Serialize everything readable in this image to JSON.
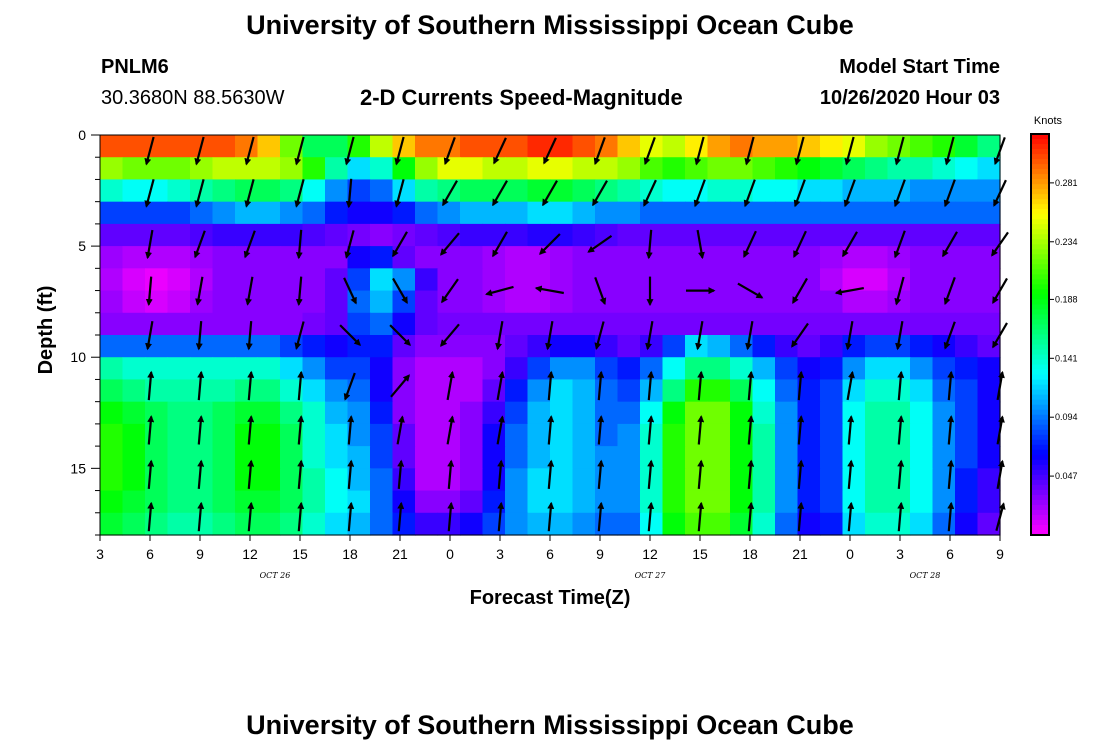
{
  "page": {
    "title": "University of Southern Mississippi Ocean Cube",
    "footer_title": "University of Southern Mississippi Ocean Cube",
    "station_id": "PNLM6",
    "station_location": "30.3680N 88.5630W",
    "subtitle": "2-D Currents Speed-Magnitude",
    "model_start_label": "Model Start Time",
    "model_start_value": "10/26/2020 Hour 03"
  },
  "chart_data": {
    "type": "heatmap",
    "title": "2-D Currents Speed-Magnitude",
    "xlabel": "Forecast Time(Z)",
    "ylabel": "Depth (ft)",
    "x_hours": [
      0,
      3,
      6,
      9,
      12,
      15,
      18,
      21,
      24,
      27,
      30,
      33,
      36,
      39,
      42,
      45,
      48,
      51,
      54
    ],
    "x_tick_labels": [
      "3",
      "6",
      "9",
      "12",
      "15",
      "18",
      "21",
      "0",
      "3",
      "6",
      "9",
      "12",
      "15",
      "18",
      "21",
      "0",
      "3",
      "6",
      "9"
    ],
    "date_labels": [
      {
        "label": "OCT 26",
        "at_hour": 10.5
      },
      {
        "label": "OCT 27",
        "at_hour": 33
      },
      {
        "label": "OCT 28",
        "at_hour": 49.5
      }
    ],
    "xlim_hours": [
      0,
      54
    ],
    "ylim_depth_ft": [
      0,
      18
    ],
    "y_ticks": [
      0,
      5,
      10,
      15
    ],
    "y_tick_labels": [
      "0",
      "5",
      "10",
      "15"
    ],
    "colorbar": {
      "title": "Knots",
      "range": [
        0,
        0.32
      ],
      "tick_values": [
        0.047,
        0.094,
        0.141,
        0.188,
        0.234,
        0.281
      ],
      "tick_labels": [
        "0.047",
        "0.094",
        "0.141",
        "0.188",
        "0.234",
        "0.281"
      ]
    },
    "depths_ft": [
      0.5,
      1.5,
      2.5,
      3.5,
      4.5,
      5.5,
      6.5,
      7.5,
      8.5,
      9.5,
      10.5,
      11.5,
      12.5,
      13.5,
      14.5,
      15.5,
      16.5,
      17.5
    ],
    "speed_knots": [
      [
        0.3,
        0.3,
        0.3,
        0.3,
        0.3,
        0.3,
        0.29,
        0.27,
        0.22,
        0.17,
        0.17,
        0.2,
        0.24,
        0.27,
        0.29,
        0.29,
        0.3,
        0.3,
        0.3,
        0.31,
        0.31,
        0.3,
        0.29,
        0.27,
        0.25,
        0.24,
        0.26,
        0.28,
        0.29,
        0.28,
        0.28,
        0.27,
        0.26,
        0.25,
        0.23,
        0.22,
        0.21,
        0.2,
        0.18,
        0.16
      ],
      [
        0.23,
        0.22,
        0.22,
        0.22,
        0.23,
        0.24,
        0.24,
        0.24,
        0.23,
        0.2,
        0.15,
        0.12,
        0.14,
        0.19,
        0.23,
        0.25,
        0.25,
        0.24,
        0.24,
        0.25,
        0.25,
        0.24,
        0.24,
        0.23,
        0.21,
        0.2,
        0.21,
        0.22,
        0.22,
        0.21,
        0.2,
        0.19,
        0.18,
        0.17,
        0.16,
        0.15,
        0.15,
        0.14,
        0.13,
        0.12
      ],
      [
        0.14,
        0.13,
        0.13,
        0.14,
        0.15,
        0.16,
        0.17,
        0.17,
        0.16,
        0.13,
        0.1,
        0.08,
        0.09,
        0.12,
        0.15,
        0.16,
        0.17,
        0.17,
        0.17,
        0.18,
        0.18,
        0.17,
        0.16,
        0.15,
        0.14,
        0.13,
        0.13,
        0.14,
        0.14,
        0.13,
        0.13,
        0.12,
        0.12,
        0.11,
        0.11,
        0.11,
        0.1,
        0.1,
        0.1,
        0.1
      ],
      [
        0.08,
        0.08,
        0.08,
        0.08,
        0.09,
        0.1,
        0.11,
        0.11,
        0.1,
        0.09,
        0.07,
        0.06,
        0.06,
        0.07,
        0.09,
        0.1,
        0.11,
        0.11,
        0.11,
        0.12,
        0.12,
        0.11,
        0.1,
        0.1,
        0.09,
        0.09,
        0.09,
        0.09,
        0.09,
        0.09,
        0.09,
        0.09,
        0.09,
        0.09,
        0.09,
        0.09,
        0.09,
        0.09,
        0.09,
        0.09
      ],
      [
        0.04,
        0.04,
        0.04,
        0.04,
        0.045,
        0.05,
        0.05,
        0.05,
        0.05,
        0.045,
        0.04,
        0.035,
        0.03,
        0.035,
        0.04,
        0.045,
        0.05,
        0.05,
        0.05,
        0.055,
        0.055,
        0.05,
        0.045,
        0.04,
        0.04,
        0.04,
        0.04,
        0.04,
        0.04,
        0.04,
        0.04,
        0.04,
        0.04,
        0.04,
        0.04,
        0.04,
        0.04,
        0.04,
        0.04,
        0.04
      ],
      [
        0.025,
        0.02,
        0.02,
        0.02,
        0.025,
        0.03,
        0.03,
        0.03,
        0.03,
        0.03,
        0.03,
        0.06,
        0.07,
        0.04,
        0.03,
        0.03,
        0.03,
        0.025,
        0.02,
        0.02,
        0.025,
        0.03,
        0.03,
        0.03,
        0.03,
        0.03,
        0.03,
        0.03,
        0.03,
        0.03,
        0.03,
        0.03,
        0.025,
        0.02,
        0.02,
        0.025,
        0.03,
        0.03,
        0.03,
        0.03
      ],
      [
        0.02,
        0.01,
        0.005,
        0.01,
        0.02,
        0.03,
        0.03,
        0.03,
        0.03,
        0.03,
        0.04,
        0.08,
        0.12,
        0.1,
        0.05,
        0.03,
        0.03,
        0.025,
        0.02,
        0.02,
        0.025,
        0.03,
        0.03,
        0.03,
        0.03,
        0.03,
        0.03,
        0.03,
        0.03,
        0.03,
        0.03,
        0.03,
        0.02,
        0.01,
        0.01,
        0.02,
        0.03,
        0.03,
        0.03,
        0.03
      ],
      [
        0.025,
        0.015,
        0.01,
        0.015,
        0.025,
        0.03,
        0.03,
        0.03,
        0.03,
        0.03,
        0.04,
        0.09,
        0.11,
        0.08,
        0.04,
        0.03,
        0.03,
        0.025,
        0.02,
        0.02,
        0.025,
        0.03,
        0.03,
        0.03,
        0.03,
        0.03,
        0.03,
        0.03,
        0.03,
        0.03,
        0.03,
        0.03,
        0.03,
        0.02,
        0.02,
        0.025,
        0.03,
        0.03,
        0.03,
        0.03
      ],
      [
        0.03,
        0.03,
        0.03,
        0.03,
        0.03,
        0.03,
        0.03,
        0.03,
        0.03,
        0.035,
        0.04,
        0.08,
        0.09,
        0.06,
        0.04,
        0.035,
        0.035,
        0.035,
        0.035,
        0.035,
        0.035,
        0.035,
        0.035,
        0.035,
        0.035,
        0.035,
        0.035,
        0.035,
        0.035,
        0.035,
        0.035,
        0.035,
        0.035,
        0.035,
        0.035,
        0.035,
        0.035,
        0.035,
        0.035,
        0.035
      ],
      [
        0.09,
        0.09,
        0.09,
        0.09,
        0.09,
        0.09,
        0.09,
        0.09,
        0.08,
        0.07,
        0.06,
        0.07,
        0.07,
        0.04,
        0.03,
        0.03,
        0.03,
        0.03,
        0.04,
        0.05,
        0.06,
        0.06,
        0.05,
        0.04,
        0.05,
        0.08,
        0.12,
        0.11,
        0.09,
        0.07,
        0.05,
        0.04,
        0.05,
        0.07,
        0.08,
        0.08,
        0.07,
        0.06,
        0.05,
        0.04
      ],
      [
        0.15,
        0.14,
        0.14,
        0.14,
        0.14,
        0.14,
        0.14,
        0.14,
        0.12,
        0.1,
        0.08,
        0.08,
        0.06,
        0.03,
        0.02,
        0.02,
        0.02,
        0.03,
        0.05,
        0.08,
        0.1,
        0.1,
        0.08,
        0.07,
        0.09,
        0.13,
        0.16,
        0.16,
        0.14,
        0.11,
        0.08,
        0.06,
        0.07,
        0.1,
        0.12,
        0.12,
        0.1,
        0.08,
        0.07,
        0.06
      ],
      [
        0.17,
        0.16,
        0.15,
        0.15,
        0.15,
        0.15,
        0.16,
        0.16,
        0.14,
        0.12,
        0.1,
        0.09,
        0.06,
        0.03,
        0.02,
        0.02,
        0.02,
        0.04,
        0.07,
        0.1,
        0.12,
        0.11,
        0.09,
        0.08,
        0.11,
        0.16,
        0.2,
        0.2,
        0.17,
        0.13,
        0.09,
        0.07,
        0.08,
        0.12,
        0.14,
        0.14,
        0.12,
        0.09,
        0.08,
        0.06
      ],
      [
        0.19,
        0.18,
        0.17,
        0.16,
        0.16,
        0.17,
        0.18,
        0.18,
        0.16,
        0.14,
        0.11,
        0.1,
        0.07,
        0.03,
        0.02,
        0.02,
        0.03,
        0.05,
        0.08,
        0.11,
        0.12,
        0.11,
        0.09,
        0.09,
        0.13,
        0.19,
        0.22,
        0.22,
        0.19,
        0.14,
        0.1,
        0.07,
        0.08,
        0.13,
        0.15,
        0.15,
        0.13,
        0.1,
        0.08,
        0.06
      ],
      [
        0.2,
        0.19,
        0.17,
        0.16,
        0.16,
        0.17,
        0.19,
        0.19,
        0.17,
        0.14,
        0.12,
        0.1,
        0.08,
        0.04,
        0.02,
        0.02,
        0.03,
        0.06,
        0.09,
        0.11,
        0.12,
        0.11,
        0.09,
        0.1,
        0.14,
        0.2,
        0.22,
        0.22,
        0.19,
        0.15,
        0.1,
        0.07,
        0.08,
        0.13,
        0.15,
        0.15,
        0.13,
        0.1,
        0.08,
        0.06
      ],
      [
        0.2,
        0.19,
        0.17,
        0.16,
        0.16,
        0.17,
        0.19,
        0.19,
        0.17,
        0.14,
        0.12,
        0.11,
        0.08,
        0.04,
        0.02,
        0.02,
        0.03,
        0.06,
        0.09,
        0.11,
        0.12,
        0.11,
        0.1,
        0.1,
        0.14,
        0.2,
        0.22,
        0.22,
        0.19,
        0.15,
        0.1,
        0.07,
        0.08,
        0.13,
        0.15,
        0.15,
        0.13,
        0.1,
        0.08,
        0.06
      ],
      [
        0.2,
        0.19,
        0.17,
        0.16,
        0.16,
        0.17,
        0.19,
        0.19,
        0.17,
        0.15,
        0.13,
        0.11,
        0.09,
        0.05,
        0.02,
        0.02,
        0.03,
        0.06,
        0.1,
        0.12,
        0.12,
        0.11,
        0.1,
        0.1,
        0.14,
        0.2,
        0.22,
        0.22,
        0.19,
        0.15,
        0.1,
        0.07,
        0.08,
        0.13,
        0.15,
        0.15,
        0.13,
        0.1,
        0.07,
        0.05
      ],
      [
        0.19,
        0.18,
        0.17,
        0.16,
        0.16,
        0.17,
        0.18,
        0.18,
        0.17,
        0.15,
        0.13,
        0.12,
        0.09,
        0.06,
        0.03,
        0.03,
        0.04,
        0.07,
        0.1,
        0.12,
        0.12,
        0.11,
        0.1,
        0.1,
        0.14,
        0.2,
        0.22,
        0.22,
        0.19,
        0.15,
        0.1,
        0.07,
        0.08,
        0.13,
        0.15,
        0.15,
        0.13,
        0.1,
        0.07,
        0.05
      ],
      [
        0.18,
        0.17,
        0.16,
        0.15,
        0.15,
        0.16,
        0.17,
        0.17,
        0.16,
        0.14,
        0.12,
        0.11,
        0.09,
        0.07,
        0.05,
        0.05,
        0.06,
        0.08,
        0.1,
        0.11,
        0.11,
        0.1,
        0.09,
        0.09,
        0.13,
        0.19,
        0.21,
        0.21,
        0.18,
        0.14,
        0.09,
        0.06,
        0.07,
        0.12,
        0.14,
        0.14,
        0.12,
        0.09,
        0.06,
        0.04
      ]
    ],
    "arrow_hours": [
      3,
      6,
      9,
      12,
      15,
      18,
      21,
      24,
      27,
      30,
      33,
      36,
      39,
      42,
      45,
      48,
      51,
      54
    ],
    "arrow_depths_ft": [
      0.7,
      2.6,
      4.9,
      7.0,
      9.0,
      11.3,
      13.3,
      15.3,
      17.2
    ],
    "arrow_dir_deg": [
      [
        195,
        195,
        195,
        195,
        195,
        195,
        200,
        205,
        205,
        200,
        200,
        195,
        195,
        195,
        195,
        195,
        195,
        200
      ],
      [
        195,
        195,
        195,
        195,
        185,
        195,
        210,
        210,
        210,
        210,
        205,
        200,
        200,
        200,
        200,
        200,
        200,
        205
      ],
      [
        190,
        200,
        200,
        185,
        195,
        210,
        220,
        210,
        225,
        235,
        185,
        170,
        205,
        205,
        210,
        200,
        210,
        215
      ],
      [
        185,
        190,
        190,
        185,
        155,
        150,
        215,
        255,
        280,
        160,
        180,
        90,
        120,
        210,
        260,
        195,
        200,
        210
      ],
      [
        190,
        185,
        185,
        195,
        135,
        135,
        220,
        190,
        190,
        195,
        190,
        190,
        190,
        215,
        190,
        190,
        200,
        210
      ],
      [
        5,
        5,
        5,
        5,
        200,
        40,
        10,
        10,
        5,
        5,
        5,
        5,
        5,
        5,
        10,
        5,
        5,
        10
      ],
      [
        5,
        5,
        5,
        5,
        5,
        10,
        10,
        10,
        5,
        5,
        5,
        5,
        5,
        5,
        5,
        5,
        5,
        10
      ],
      [
        5,
        5,
        5,
        5,
        5,
        5,
        5,
        5,
        5,
        5,
        5,
        5,
        5,
        5,
        5,
        5,
        5,
        10
      ],
      [
        5,
        5,
        5,
        5,
        5,
        5,
        5,
        5,
        5,
        5,
        5,
        5,
        5,
        5,
        5,
        5,
        5,
        15
      ]
    ]
  }
}
